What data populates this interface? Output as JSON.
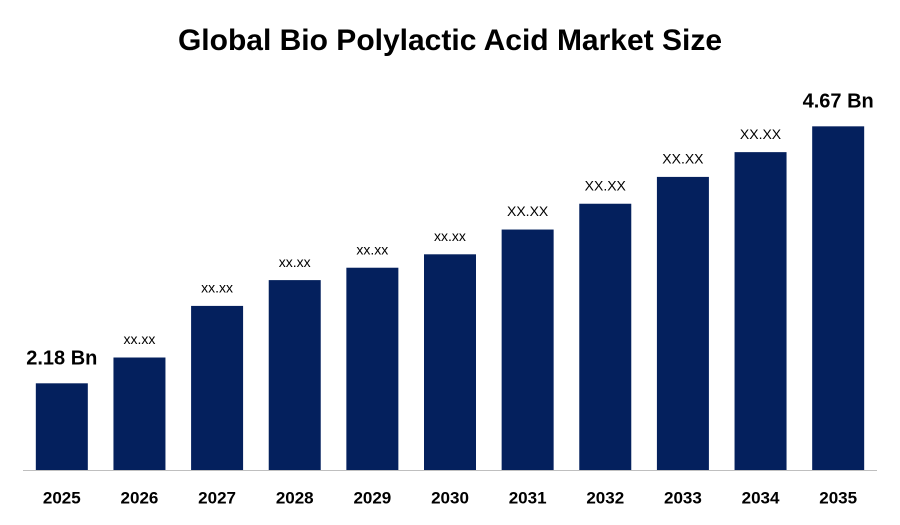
{
  "chart_data": {
    "type": "bar",
    "title": "Global Bio Polylactic Acid Market Size",
    "categories": [
      "2025",
      "2026",
      "2027",
      "2028",
      "2029",
      "2030",
      "2031",
      "2032",
      "2033",
      "2034",
      "2035"
    ],
    "values": [
      2.18,
      2.43,
      2.93,
      3.18,
      3.3,
      3.43,
      3.67,
      3.92,
      4.18,
      4.42,
      4.67
    ],
    "value_labels": [
      "2.18 Bn",
      "xx.xx",
      "xx.xx",
      "xx.xx",
      "xx.xx",
      "xx.xx",
      "XX.XX",
      "XX.XX",
      "XX.XX",
      "XX.XX",
      "4.67 Bn"
    ],
    "color": "#04205d",
    "ylim": [
      1.34,
      4.9
    ]
  }
}
